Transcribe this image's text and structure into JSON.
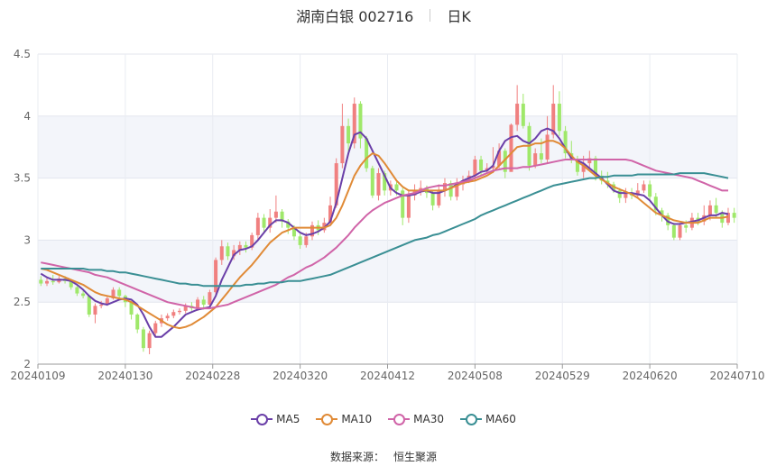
{
  "header": {
    "title": "湖南白银 002716",
    "period": "日K"
  },
  "source": {
    "label": "数据来源：",
    "provider": "恒生聚源"
  },
  "chart_data": {
    "type": "candlestick",
    "ylim": [
      2,
      4.5
    ],
    "yticks": [
      "2",
      "2.5",
      "3",
      "3.5",
      "4",
      "4.5"
    ],
    "xtick_labels": [
      "20240109",
      "20240130",
      "20240228",
      "20240320",
      "20240412",
      "20240508",
      "20240529",
      "20240620",
      "20240710"
    ],
    "up_color": "#f08080",
    "down_color": "#9fe86a",
    "grid": true,
    "legend_position": "bottom",
    "candles": [
      [
        2.68,
        2.65,
        2.71,
        2.63
      ],
      [
        2.65,
        2.67,
        2.7,
        2.63
      ],
      [
        2.67,
        2.66,
        2.72,
        2.64
      ],
      [
        2.66,
        2.69,
        2.71,
        2.65
      ],
      [
        2.69,
        2.67,
        2.71,
        2.65
      ],
      [
        2.67,
        2.62,
        2.68,
        2.6
      ],
      [
        2.62,
        2.57,
        2.63,
        2.55
      ],
      [
        2.57,
        2.55,
        2.59,
        2.53
      ],
      [
        2.55,
        2.4,
        2.56,
        2.38
      ],
      [
        2.4,
        2.47,
        2.49,
        2.33
      ],
      [
        2.47,
        2.48,
        2.51,
        2.45
      ],
      [
        2.48,
        2.53,
        2.55,
        2.47
      ],
      [
        2.53,
        2.6,
        2.62,
        2.52
      ],
      [
        2.6,
        2.55,
        2.62,
        2.53
      ],
      [
        2.55,
        2.5,
        2.56,
        2.46
      ],
      [
        2.5,
        2.4,
        2.51,
        2.36
      ],
      [
        2.4,
        2.28,
        2.41,
        2.25
      ],
      [
        2.28,
        2.13,
        2.3,
        2.1
      ],
      [
        2.13,
        2.25,
        2.27,
        2.08
      ],
      [
        2.25,
        2.33,
        2.35,
        2.22
      ],
      [
        2.33,
        2.37,
        2.4,
        2.3
      ],
      [
        2.37,
        2.39,
        2.41,
        2.35
      ],
      [
        2.39,
        2.42,
        2.44,
        2.37
      ],
      [
        2.42,
        2.43,
        2.45,
        2.4
      ],
      [
        2.43,
        2.47,
        2.49,
        2.41
      ],
      [
        2.47,
        2.45,
        2.5,
        2.43
      ],
      [
        2.45,
        2.52,
        2.54,
        2.43
      ],
      [
        2.52,
        2.48,
        2.55,
        2.44
      ],
      [
        2.48,
        2.58,
        2.6,
        2.46
      ],
      [
        2.58,
        2.84,
        2.86,
        2.56
      ],
      [
        2.84,
        2.95,
        3.0,
        2.8
      ],
      [
        2.95,
        2.87,
        2.98,
        2.84
      ],
      [
        2.87,
        2.92,
        2.96,
        2.84
      ],
      [
        2.92,
        2.96,
        2.99,
        2.88
      ],
      [
        2.96,
        2.94,
        2.99,
        2.9
      ],
      [
        2.94,
        3.04,
        3.06,
        2.92
      ],
      [
        3.04,
        3.18,
        3.22,
        3.0
      ],
      [
        3.18,
        3.1,
        3.21,
        3.06
      ],
      [
        3.1,
        3.18,
        3.25,
        3.06
      ],
      [
        3.18,
        3.23,
        3.36,
        3.14
      ],
      [
        3.23,
        3.15,
        3.25,
        3.1
      ],
      [
        3.15,
        3.1,
        3.17,
        3.05
      ],
      [
        3.1,
        3.03,
        3.12,
        3.0
      ],
      [
        3.03,
        2.96,
        3.05,
        2.93
      ],
      [
        2.96,
        3.03,
        3.06,
        2.94
      ],
      [
        3.03,
        3.12,
        3.15,
        3.0
      ],
      [
        3.12,
        3.08,
        3.16,
        3.04
      ],
      [
        3.08,
        3.14,
        3.18,
        3.06
      ],
      [
        3.14,
        3.28,
        3.35,
        3.12
      ],
      [
        3.28,
        3.62,
        3.66,
        3.26
      ],
      [
        3.62,
        3.92,
        4.1,
        3.58
      ],
      [
        3.92,
        3.78,
        3.98,
        3.7
      ],
      [
        3.78,
        4.1,
        4.15,
        3.74
      ],
      [
        4.1,
        3.82,
        4.12,
        3.74
      ],
      [
        3.82,
        3.58,
        3.84,
        3.55
      ],
      [
        3.58,
        3.36,
        3.6,
        3.34
      ],
      [
        3.36,
        3.54,
        3.58,
        3.32
      ],
      [
        3.54,
        3.4,
        3.56,
        3.36
      ],
      [
        3.4,
        3.45,
        3.48,
        3.36
      ],
      [
        3.45,
        3.4,
        3.47,
        3.36
      ],
      [
        3.4,
        3.18,
        3.42,
        3.12
      ],
      [
        3.18,
        3.36,
        3.4,
        3.14
      ],
      [
        3.36,
        3.4,
        3.45,
        3.32
      ],
      [
        3.4,
        3.42,
        3.48,
        3.36
      ],
      [
        3.42,
        3.38,
        3.44,
        3.34
      ],
      [
        3.38,
        3.28,
        3.4,
        3.24
      ],
      [
        3.28,
        3.4,
        3.45,
        3.26
      ],
      [
        3.4,
        3.46,
        3.5,
        3.35
      ],
      [
        3.46,
        3.35,
        3.48,
        3.32
      ],
      [
        3.35,
        3.45,
        3.5,
        3.32
      ],
      [
        3.45,
        3.48,
        3.52,
        3.4
      ],
      [
        3.48,
        3.52,
        3.56,
        3.46
      ],
      [
        3.52,
        3.65,
        3.68,
        3.48
      ],
      [
        3.65,
        3.56,
        3.68,
        3.52
      ],
      [
        3.56,
        3.58,
        3.62,
        3.54
      ],
      [
        3.58,
        3.6,
        3.75,
        3.54
      ],
      [
        3.6,
        3.72,
        3.78,
        3.58
      ],
      [
        3.72,
        3.55,
        3.74,
        3.5
      ],
      [
        3.55,
        3.93,
        3.94,
        3.92
      ],
      [
        3.93,
        4.1,
        4.25,
        3.88
      ],
      [
        4.1,
        3.92,
        4.18,
        3.9
      ],
      [
        3.92,
        3.6,
        3.95,
        3.56
      ],
      [
        3.6,
        3.7,
        3.74,
        3.58
      ],
      [
        3.7,
        3.65,
        3.82,
        3.62
      ],
      [
        3.65,
        3.85,
        4.0,
        3.62
      ],
      [
        3.85,
        4.1,
        4.25,
        3.82
      ],
      [
        4.1,
        3.88,
        4.2,
        3.84
      ],
      [
        3.88,
        3.7,
        3.92,
        3.66
      ],
      [
        3.7,
        3.65,
        3.8,
        3.62
      ],
      [
        3.65,
        3.55,
        3.68,
        3.52
      ],
      [
        3.55,
        3.62,
        3.68,
        3.5
      ],
      [
        3.62,
        3.66,
        3.72,
        3.58
      ],
      [
        3.66,
        3.52,
        3.68,
        3.48
      ],
      [
        3.52,
        3.48,
        3.56,
        3.45
      ],
      [
        3.48,
        3.45,
        3.55,
        3.42
      ],
      [
        3.45,
        3.4,
        3.47,
        3.38
      ],
      [
        3.4,
        3.34,
        3.42,
        3.3
      ],
      [
        3.34,
        3.38,
        3.42,
        3.3
      ],
      [
        3.38,
        3.36,
        3.42,
        3.33
      ],
      [
        3.36,
        3.4,
        3.46,
        3.34
      ],
      [
        3.4,
        3.45,
        3.48,
        3.38
      ],
      [
        3.45,
        3.35,
        3.48,
        3.32
      ],
      [
        3.35,
        3.24,
        3.38,
        3.2
      ],
      [
        3.24,
        3.2,
        3.26,
        3.15
      ],
      [
        3.2,
        3.12,
        3.22,
        3.08
      ],
      [
        3.12,
        3.02,
        3.14,
        3.0
      ],
      [
        3.02,
        3.12,
        3.14,
        3.0
      ],
      [
        3.12,
        3.1,
        3.16,
        3.06
      ],
      [
        3.1,
        3.18,
        3.22,
        3.08
      ],
      [
        3.18,
        3.15,
        3.22,
        3.12
      ],
      [
        3.15,
        3.2,
        3.28,
        3.12
      ],
      [
        3.2,
        3.28,
        3.32,
        3.16
      ],
      [
        3.28,
        3.22,
        3.34,
        3.18
      ],
      [
        3.22,
        3.14,
        3.24,
        3.1
      ],
      [
        3.14,
        3.22,
        3.26,
        3.12
      ],
      [
        3.22,
        3.18,
        3.26,
        3.14
      ]
    ],
    "series": [
      {
        "name": "MA5",
        "color": "#6a3fa8",
        "values": [
          2.73,
          2.7,
          2.68,
          2.68,
          2.68,
          2.67,
          2.64,
          2.6,
          2.55,
          2.51,
          2.49,
          2.48,
          2.5,
          2.52,
          2.53,
          2.52,
          2.48,
          2.4,
          2.3,
          2.22,
          2.22,
          2.26,
          2.3,
          2.35,
          2.4,
          2.42,
          2.44,
          2.45,
          2.46,
          2.55,
          2.68,
          2.78,
          2.88,
          2.92,
          2.93,
          2.95,
          3.0,
          3.06,
          3.12,
          3.16,
          3.16,
          3.14,
          3.1,
          3.06,
          3.04,
          3.05,
          3.07,
          3.1,
          3.15,
          3.3,
          3.5,
          3.7,
          3.85,
          3.87,
          3.82,
          3.72,
          3.62,
          3.52,
          3.42,
          3.38,
          3.36,
          3.36,
          3.37,
          3.39,
          3.4,
          3.38,
          3.38,
          3.4,
          3.42,
          3.45,
          3.48,
          3.5,
          3.52,
          3.55,
          3.56,
          3.6,
          3.72,
          3.8,
          3.83,
          3.84,
          3.8,
          3.78,
          3.82,
          3.88,
          3.9,
          3.88,
          3.82,
          3.74,
          3.66,
          3.64,
          3.62,
          3.58,
          3.54,
          3.5,
          3.45,
          3.4,
          3.38,
          3.38,
          3.38,
          3.37,
          3.36,
          3.32,
          3.26,
          3.2,
          3.15,
          3.13,
          3.13,
          3.14,
          3.15,
          3.16,
          3.18,
          3.2,
          3.2,
          3.22,
          3.21
        ]
      },
      {
        "name": "MA10",
        "color": "#e08a36",
        "values": [
          2.77,
          2.76,
          2.74,
          2.72,
          2.7,
          2.68,
          2.66,
          2.64,
          2.61,
          2.58,
          2.56,
          2.55,
          2.54,
          2.53,
          2.52,
          2.5,
          2.47,
          2.44,
          2.41,
          2.38,
          2.35,
          2.32,
          2.3,
          2.29,
          2.3,
          2.32,
          2.35,
          2.38,
          2.42,
          2.46,
          2.52,
          2.58,
          2.64,
          2.7,
          2.75,
          2.8,
          2.86,
          2.92,
          2.98,
          3.02,
          3.06,
          3.08,
          3.1,
          3.1,
          3.1,
          3.1,
          3.1,
          3.1,
          3.12,
          3.18,
          3.28,
          3.4,
          3.52,
          3.6,
          3.66,
          3.7,
          3.68,
          3.62,
          3.55,
          3.48,
          3.43,
          3.4,
          3.4,
          3.4,
          3.4,
          3.4,
          3.4,
          3.4,
          3.42,
          3.44,
          3.46,
          3.47,
          3.48,
          3.5,
          3.52,
          3.55,
          3.6,
          3.65,
          3.7,
          3.75,
          3.76,
          3.76,
          3.78,
          3.78,
          3.8,
          3.8,
          3.78,
          3.74,
          3.68,
          3.63,
          3.6,
          3.56,
          3.52,
          3.49,
          3.46,
          3.43,
          3.41,
          3.39,
          3.37,
          3.34,
          3.3,
          3.26,
          3.22,
          3.2,
          3.18,
          3.16,
          3.15,
          3.14,
          3.14,
          3.14,
          3.16,
          3.18,
          3.18,
          3.18,
          3.19
        ]
      },
      {
        "name": "MA30",
        "color": "#d064a8",
        "values": [
          2.82,
          2.81,
          2.8,
          2.79,
          2.78,
          2.77,
          2.76,
          2.75,
          2.74,
          2.72,
          2.71,
          2.7,
          2.68,
          2.66,
          2.64,
          2.62,
          2.6,
          2.58,
          2.56,
          2.54,
          2.52,
          2.5,
          2.49,
          2.48,
          2.47,
          2.46,
          2.45,
          2.45,
          2.45,
          2.46,
          2.47,
          2.48,
          2.5,
          2.52,
          2.54,
          2.56,
          2.58,
          2.6,
          2.62,
          2.64,
          2.67,
          2.7,
          2.72,
          2.75,
          2.78,
          2.8,
          2.83,
          2.86,
          2.9,
          2.94,
          2.99,
          3.04,
          3.1,
          3.15,
          3.2,
          3.24,
          3.27,
          3.3,
          3.32,
          3.34,
          3.36,
          3.37,
          3.38,
          3.4,
          3.42,
          3.43,
          3.44,
          3.44,
          3.45,
          3.46,
          3.47,
          3.48,
          3.5,
          3.52,
          3.54,
          3.56,
          3.57,
          3.58,
          3.58,
          3.58,
          3.59,
          3.59,
          3.6,
          3.61,
          3.62,
          3.63,
          3.64,
          3.65,
          3.65,
          3.65,
          3.65,
          3.65,
          3.65,
          3.65,
          3.65,
          3.65,
          3.65,
          3.65,
          3.64,
          3.62,
          3.6,
          3.58,
          3.56,
          3.55,
          3.54,
          3.53,
          3.52,
          3.51,
          3.5,
          3.48,
          3.46,
          3.44,
          3.42,
          3.4,
          3.4
        ]
      },
      {
        "name": "MA60",
        "color": "#3a8f94",
        "values": [
          2.77,
          2.77,
          2.77,
          2.77,
          2.77,
          2.77,
          2.77,
          2.77,
          2.76,
          2.76,
          2.76,
          2.75,
          2.75,
          2.74,
          2.74,
          2.73,
          2.72,
          2.71,
          2.7,
          2.69,
          2.68,
          2.67,
          2.66,
          2.65,
          2.65,
          2.64,
          2.64,
          2.63,
          2.63,
          2.63,
          2.63,
          2.63,
          2.63,
          2.63,
          2.64,
          2.64,
          2.65,
          2.65,
          2.66,
          2.66,
          2.66,
          2.67,
          2.67,
          2.67,
          2.68,
          2.69,
          2.7,
          2.71,
          2.72,
          2.74,
          2.76,
          2.78,
          2.8,
          2.82,
          2.84,
          2.86,
          2.88,
          2.9,
          2.92,
          2.94,
          2.96,
          2.98,
          3.0,
          3.01,
          3.02,
          3.04,
          3.05,
          3.07,
          3.09,
          3.11,
          3.13,
          3.15,
          3.17,
          3.2,
          3.22,
          3.24,
          3.26,
          3.28,
          3.3,
          3.32,
          3.34,
          3.36,
          3.38,
          3.4,
          3.42,
          3.44,
          3.45,
          3.46,
          3.47,
          3.48,
          3.49,
          3.5,
          3.5,
          3.51,
          3.51,
          3.52,
          3.52,
          3.52,
          3.52,
          3.53,
          3.53,
          3.53,
          3.53,
          3.53,
          3.53,
          3.53,
          3.54,
          3.54,
          3.54,
          3.54,
          3.54,
          3.53,
          3.52,
          3.51,
          3.5
        ]
      }
    ]
  }
}
